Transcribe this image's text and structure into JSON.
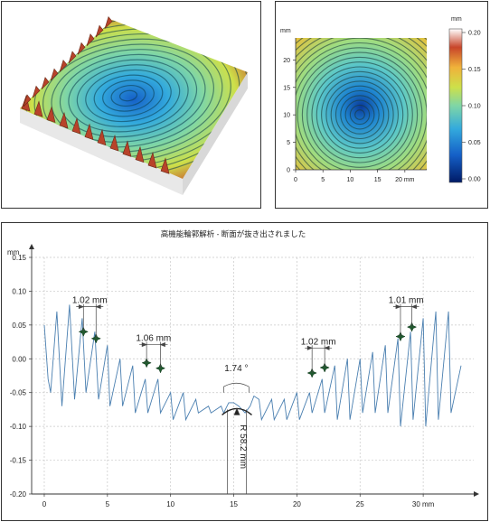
{
  "surface_3d": {
    "icon": "3d-surface-render"
  },
  "height_map": {
    "axis_unit": "mm",
    "x_ticks": [
      "0",
      "5",
      "10",
      "15",
      "20 mm"
    ],
    "y_ticks": [
      "0",
      "5",
      "10",
      "15",
      "20"
    ],
    "colorbar_unit": "mm",
    "colorbar_ticks": [
      "0.20",
      "0.15",
      "0.10",
      "0.05",
      "0.00"
    ],
    "colors": [
      "#001a66",
      "#1560c8",
      "#33aadd",
      "#7fd6a6",
      "#cde04a",
      "#f0b23a",
      "#c8452a",
      "#ffffff"
    ]
  },
  "profile": {
    "title": "高機能輪郭解析 - 断面が抜き出されました",
    "y_unit": "mm",
    "y_ticks": [
      "0.15",
      "0.10",
      "0.05",
      "0.00",
      "-0.05",
      "-0.10",
      "-0.15",
      "-0.20"
    ],
    "x_ticks": [
      "0",
      "5",
      "10",
      "15",
      "20",
      "25",
      "30 mm"
    ],
    "annotations": {
      "pitch1": "1.02 mm",
      "pitch2": "1.06 mm",
      "angle": "1.74 °",
      "radius": "R 58.2 mm",
      "pitch3": "1.02 mm",
      "pitch4": "1.01 mm"
    }
  },
  "chart_data": {
    "type": "line",
    "title": "高機能輪郭解析 - 断面が抜き出されました",
    "xlabel": "mm",
    "ylabel": "mm",
    "xlim": [
      -1,
      34
    ],
    "ylim": [
      -0.2,
      0.15
    ],
    "grid": true,
    "series": [
      {
        "x": [
          0.0,
          0.3,
          0.5,
          1.0,
          1.4,
          2.0,
          2.4,
          3.0,
          3.3,
          4.0,
          4.3,
          5.0,
          5.2,
          6.0,
          6.2,
          7.0,
          7.2,
          8.0,
          8.2,
          9.0,
          9.2,
          10.0,
          10.2,
          11.0,
          11.2,
          12.0,
          12.2,
          13.0,
          13.2,
          14.0,
          14.2,
          14.6,
          15.0,
          15.4,
          15.9,
          16.3,
          16.6,
          17.0,
          17.2,
          18.0,
          18.2,
          19.0,
          19.2,
          20.0,
          20.2,
          21.0,
          21.2,
          22.0,
          22.2,
          23.0,
          23.2,
          24.0,
          24.2,
          25.0,
          25.2,
          26.0,
          26.2,
          27.0,
          27.2,
          28.0,
          28.2,
          29.0,
          29.2,
          30.0,
          30.2,
          31.0,
          31.2,
          32.0,
          32.2,
          33.0
        ],
        "y": [
          0.05,
          -0.03,
          -0.05,
          0.07,
          -0.07,
          0.08,
          -0.06,
          0.06,
          -0.05,
          0.04,
          -0.06,
          0.02,
          -0.07,
          0.0,
          -0.07,
          -0.01,
          -0.08,
          -0.03,
          -0.08,
          -0.03,
          -0.08,
          -0.05,
          -0.09,
          -0.05,
          -0.09,
          -0.06,
          -0.08,
          -0.07,
          -0.08,
          -0.07,
          -0.08,
          -0.065,
          -0.065,
          -0.07,
          -0.08,
          -0.07,
          -0.055,
          -0.06,
          -0.09,
          -0.06,
          -0.09,
          -0.06,
          -0.09,
          -0.05,
          -0.09,
          -0.05,
          -0.08,
          -0.03,
          -0.08,
          -0.01,
          -0.09,
          0.0,
          -0.09,
          0.0,
          -0.08,
          0.01,
          -0.08,
          0.02,
          -0.08,
          0.03,
          -0.1,
          0.04,
          -0.09,
          0.06,
          -0.1,
          0.07,
          -0.09,
          0.07,
          -0.08,
          -0.01
        ]
      }
    ],
    "markers": {
      "x": [
        3.1,
        4.1,
        8.1,
        9.2,
        21.2,
        22.2,
        28.2,
        29.1
      ],
      "y": [
        0.04,
        0.03,
        -0.006,
        -0.014,
        -0.021,
        -0.013,
        0.033,
        0.047
      ]
    }
  }
}
